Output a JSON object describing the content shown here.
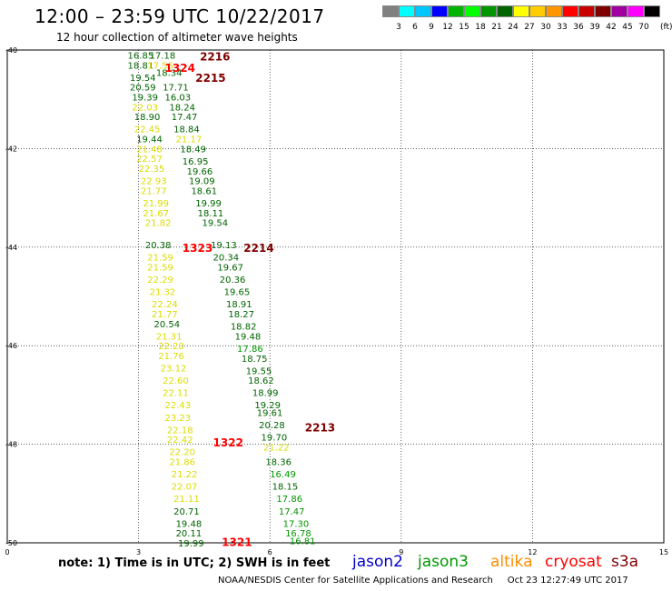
{
  "header": {
    "title": "12:00 – 23:59 UTC 10/22/2017",
    "subtitle": "12 hour collection of altimeter wave heights"
  },
  "legend": {
    "unit": "(ft)",
    "bins": [
      {
        "label": "",
        "color": "#808080"
      },
      {
        "label": "3",
        "color": "#00ffff"
      },
      {
        "label": "6",
        "color": "#00c8ff"
      },
      {
        "label": "9",
        "color": "#0000ff"
      },
      {
        "label": "12",
        "color": "#00b400"
      },
      {
        "label": "15",
        "color": "#00ff00"
      },
      {
        "label": "18",
        "color": "#009600"
      },
      {
        "label": "21",
        "color": "#006400"
      },
      {
        "label": "24",
        "color": "#ffff00"
      },
      {
        "label": "27",
        "color": "#ffcc00"
      },
      {
        "label": "30",
        "color": "#ff9600"
      },
      {
        "label": "33",
        "color": "#ff0000"
      },
      {
        "label": "36",
        "color": "#c80000"
      },
      {
        "label": "39",
        "color": "#800000"
      },
      {
        "label": "42",
        "color": "#a000a0"
      },
      {
        "label": "45",
        "color": "#ff00ff"
      },
      {
        "label": "70",
        "color": "#000000"
      }
    ]
  },
  "map": {
    "x_ticks": [
      "0",
      "3",
      "6",
      "9",
      "12",
      "15"
    ],
    "y_ticks": [
      "-40",
      "-42",
      "-44",
      "-46",
      "-48",
      "-50"
    ],
    "colors": {
      "dkgreen": "#006400",
      "green": "#009600",
      "yellow": "#dcdc00",
      "red": "#ff0000",
      "maroon": "#800000"
    },
    "track_labels": [
      {
        "text": "2216",
        "lon": 4.4,
        "lat": -40.12,
        "color": "maroon"
      },
      {
        "text": "1324",
        "lon": 3.6,
        "lat": -40.35,
        "color": "red"
      },
      {
        "text": "2215",
        "lon": 4.3,
        "lat": -40.55,
        "color": "maroon"
      },
      {
        "text": "1323",
        "lon": 4.0,
        "lat": -44.0,
        "color": "red"
      },
      {
        "text": "2214",
        "lon": 5.4,
        "lat": -44.0,
        "color": "maroon"
      },
      {
        "text": "1322",
        "lon": 4.7,
        "lat": -47.95,
        "color": "red"
      },
      {
        "text": "2213",
        "lon": 6.8,
        "lat": -47.65,
        "color": "maroon"
      },
      {
        "text": "1321",
        "lon": 4.9,
        "lat": -49.97,
        "color": "red"
      }
    ],
    "points": [
      {
        "v": "16.85",
        "lon": 2.75,
        "lat": -40.1,
        "c": "dkgreen"
      },
      {
        "v": "17.18",
        "lon": 3.25,
        "lat": -40.1,
        "c": "dkgreen"
      },
      {
        "v": "18.81",
        "lon": 2.75,
        "lat": -40.3,
        "c": "dkgreen"
      },
      {
        "v": "17.56",
        "lon": 3.2,
        "lat": -40.3,
        "c": "yellow"
      },
      {
        "v": "19.54",
        "lon": 2.8,
        "lat": -40.55,
        "c": "dkgreen"
      },
      {
        "v": "18.34",
        "lon": 3.4,
        "lat": -40.45,
        "c": "dkgreen"
      },
      {
        "v": "20.59",
        "lon": 2.8,
        "lat": -40.75,
        "c": "dkgreen"
      },
      {
        "v": "17.71",
        "lon": 3.55,
        "lat": -40.75,
        "c": "dkgreen"
      },
      {
        "v": "19.39",
        "lon": 2.85,
        "lat": -40.95,
        "c": "dkgreen"
      },
      {
        "v": "16.03",
        "lon": 3.6,
        "lat": -40.95,
        "c": "dkgreen"
      },
      {
        "v": "22.03",
        "lon": 2.85,
        "lat": -41.15,
        "c": "yellow"
      },
      {
        "v": "18.24",
        "lon": 3.7,
        "lat": -41.15,
        "c": "dkgreen"
      },
      {
        "v": "18.90",
        "lon": 2.9,
        "lat": -41.35,
        "c": "dkgreen"
      },
      {
        "v": "17.47",
        "lon": 3.75,
        "lat": -41.35,
        "c": "dkgreen"
      },
      {
        "v": "22.45",
        "lon": 2.9,
        "lat": -41.6,
        "c": "yellow"
      },
      {
        "v": "18.84",
        "lon": 3.8,
        "lat": -41.6,
        "c": "dkgreen"
      },
      {
        "v": "19.44",
        "lon": 2.95,
        "lat": -41.8,
        "c": "dkgreen"
      },
      {
        "v": "21.17",
        "lon": 3.85,
        "lat": -41.8,
        "c": "yellow"
      },
      {
        "v": "21.48",
        "lon": 2.95,
        "lat": -42.0,
        "c": "yellow"
      },
      {
        "v": "18.49",
        "lon": 3.95,
        "lat": -42.0,
        "c": "dkgreen"
      },
      {
        "v": "22.57",
        "lon": 2.95,
        "lat": -42.2,
        "c": "yellow"
      },
      {
        "v": "16.95",
        "lon": 4.0,
        "lat": -42.25,
        "c": "dkgreen"
      },
      {
        "v": "22.35",
        "lon": 3.0,
        "lat": -42.4,
        "c": "yellow"
      },
      {
        "v": "19.66",
        "lon": 4.1,
        "lat": -42.45,
        "c": "dkgreen"
      },
      {
        "v": "22.93",
        "lon": 3.05,
        "lat": -42.65,
        "c": "yellow"
      },
      {
        "v": "19.09",
        "lon": 4.15,
        "lat": -42.65,
        "c": "dkgreen"
      },
      {
        "v": "21.77",
        "lon": 3.05,
        "lat": -42.85,
        "c": "yellow"
      },
      {
        "v": "18.61",
        "lon": 4.2,
        "lat": -42.85,
        "c": "dkgreen"
      },
      {
        "v": "21.99",
        "lon": 3.1,
        "lat": -43.1,
        "c": "yellow"
      },
      {
        "v": "19.99",
        "lon": 4.3,
        "lat": -43.1,
        "c": "dkgreen"
      },
      {
        "v": "21.67",
        "lon": 3.1,
        "lat": -43.3,
        "c": "yellow"
      },
      {
        "v": "18.11",
        "lon": 4.35,
        "lat": -43.3,
        "c": "dkgreen"
      },
      {
        "v": "21.82",
        "lon": 3.15,
        "lat": -43.5,
        "c": "yellow"
      },
      {
        "v": "19.54",
        "lon": 4.45,
        "lat": -43.5,
        "c": "dkgreen"
      },
      {
        "v": "20.38",
        "lon": 3.15,
        "lat": -43.95,
        "c": "dkgreen"
      },
      {
        "v": "19.13",
        "lon": 4.65,
        "lat": -43.95,
        "c": "dkgreen"
      },
      {
        "v": "21.59",
        "lon": 3.2,
        "lat": -44.2,
        "c": "yellow"
      },
      {
        "v": "20.34",
        "lon": 4.7,
        "lat": -44.2,
        "c": "dkgreen"
      },
      {
        "v": "21.59",
        "lon": 3.2,
        "lat": -44.4,
        "c": "yellow"
      },
      {
        "v": "19.67",
        "lon": 4.8,
        "lat": -44.4,
        "c": "dkgreen"
      },
      {
        "v": "22.29",
        "lon": 3.2,
        "lat": -44.65,
        "c": "yellow"
      },
      {
        "v": "20.36",
        "lon": 4.85,
        "lat": -44.65,
        "c": "dkgreen"
      },
      {
        "v": "21.32",
        "lon": 3.25,
        "lat": -44.9,
        "c": "yellow"
      },
      {
        "v": "19.65",
        "lon": 4.95,
        "lat": -44.9,
        "c": "dkgreen"
      },
      {
        "v": "22.24",
        "lon": 3.3,
        "lat": -45.15,
        "c": "yellow"
      },
      {
        "v": "18.91",
        "lon": 5.0,
        "lat": -45.15,
        "c": "dkgreen"
      },
      {
        "v": "21.77",
        "lon": 3.3,
        "lat": -45.35,
        "c": "yellow"
      },
      {
        "v": "18.27",
        "lon": 5.05,
        "lat": -45.35,
        "c": "dkgreen"
      },
      {
        "v": "20.54",
        "lon": 3.35,
        "lat": -45.55,
        "c": "dkgreen"
      },
      {
        "v": "18.82",
        "lon": 5.1,
        "lat": -45.6,
        "c": "dkgreen"
      },
      {
        "v": "21.31",
        "lon": 3.4,
        "lat": -45.8,
        "c": "yellow"
      },
      {
        "v": "19.48",
        "lon": 5.2,
        "lat": -45.8,
        "c": "dkgreen"
      },
      {
        "v": "22.20",
        "lon": 3.45,
        "lat": -46.0,
        "c": "yellow"
      },
      {
        "v": "17.86",
        "lon": 5.25,
        "lat": -46.05,
        "c": "green"
      },
      {
        "v": "21.76",
        "lon": 3.45,
        "lat": -46.2,
        "c": "yellow"
      },
      {
        "v": "18.75",
        "lon": 5.35,
        "lat": -46.25,
        "c": "dkgreen"
      },
      {
        "v": "23.12",
        "lon": 3.5,
        "lat": -46.45,
        "c": "yellow"
      },
      {
        "v": "19.55",
        "lon": 5.45,
        "lat": -46.5,
        "c": "dkgreen"
      },
      {
        "v": "22.60",
        "lon": 3.55,
        "lat": -46.7,
        "c": "yellow"
      },
      {
        "v": "18.62",
        "lon": 5.5,
        "lat": -46.7,
        "c": "dkgreen"
      },
      {
        "v": "22.11",
        "lon": 3.55,
        "lat": -46.95,
        "c": "yellow"
      },
      {
        "v": "18.99",
        "lon": 5.6,
        "lat": -46.95,
        "c": "dkgreen"
      },
      {
        "v": "22.43",
        "lon": 3.6,
        "lat": -47.2,
        "c": "yellow"
      },
      {
        "v": "19.29",
        "lon": 5.65,
        "lat": -47.2,
        "c": "dkgreen"
      },
      {
        "v": "23.23",
        "lon": 3.6,
        "lat": -47.45,
        "c": "yellow"
      },
      {
        "v": "19.61",
        "lon": 5.7,
        "lat": -47.35,
        "c": "dkgreen"
      },
      {
        "v": "22.18",
        "lon": 3.65,
        "lat": -47.7,
        "c": "yellow"
      },
      {
        "v": "20.28",
        "lon": 5.75,
        "lat": -47.6,
        "c": "dkgreen"
      },
      {
        "v": "22.42",
        "lon": 3.65,
        "lat": -47.9,
        "c": "yellow"
      },
      {
        "v": "19.70",
        "lon": 5.8,
        "lat": -47.85,
        "c": "dkgreen"
      },
      {
        "v": "22.20",
        "lon": 3.7,
        "lat": -48.15,
        "c": "yellow"
      },
      {
        "v": "21.22",
        "lon": 5.85,
        "lat": -48.05,
        "c": "yellow"
      },
      {
        "v": "21.86",
        "lon": 3.7,
        "lat": -48.35,
        "c": "yellow"
      },
      {
        "v": "18.36",
        "lon": 5.9,
        "lat": -48.35,
        "c": "dkgreen"
      },
      {
        "v": "21.22",
        "lon": 3.75,
        "lat": -48.6,
        "c": "yellow"
      },
      {
        "v": "16.49",
        "lon": 6.0,
        "lat": -48.6,
        "c": "green"
      },
      {
        "v": "22.07",
        "lon": 3.75,
        "lat": -48.85,
        "c": "yellow"
      },
      {
        "v": "18.15",
        "lon": 6.05,
        "lat": -48.85,
        "c": "dkgreen"
      },
      {
        "v": "21.11",
        "lon": 3.8,
        "lat": -49.1,
        "c": "yellow"
      },
      {
        "v": "17.86",
        "lon": 6.15,
        "lat": -49.1,
        "c": "green"
      },
      {
        "v": "20.71",
        "lon": 3.8,
        "lat": -49.35,
        "c": "dkgreen"
      },
      {
        "v": "17.47",
        "lon": 6.2,
        "lat": -49.35,
        "c": "green"
      },
      {
        "v": "19.48",
        "lon": 3.85,
        "lat": -49.6,
        "c": "dkgreen"
      },
      {
        "v": "17.30",
        "lon": 6.3,
        "lat": -49.6,
        "c": "green"
      },
      {
        "v": "20.11",
        "lon": 3.85,
        "lat": -49.8,
        "c": "dkgreen"
      },
      {
        "v": "16.78",
        "lon": 6.35,
        "lat": -49.8,
        "c": "green"
      },
      {
        "v": "19.99",
        "lon": 3.9,
        "lat": -50.0,
        "c": "dkgreen"
      },
      {
        "v": "16.81",
        "lon": 6.45,
        "lat": -49.95,
        "c": "green"
      }
    ]
  },
  "note": "note:  1) Time is in UTC;  2) SWH is in feet",
  "satellites": [
    {
      "name": "jason2",
      "color": "#0000cc"
    },
    {
      "name": "jason3",
      "color": "#009900"
    },
    {
      "name": "altika",
      "color": "#ff8c00"
    },
    {
      "name": "cryosat",
      "color": "#ff0000"
    },
    {
      "name": "s3a",
      "color": "#800000"
    }
  ],
  "footer": {
    "agency": "NOAA/NESDIS Center for Satellite Applications and Research",
    "timestamp": "Oct 23 12:27:49 UTC 2017"
  }
}
